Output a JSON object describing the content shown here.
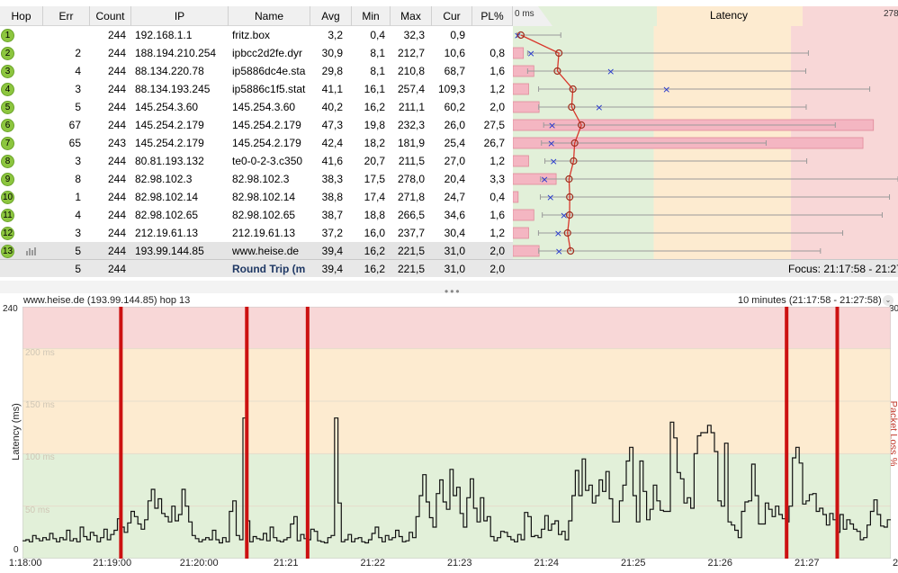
{
  "columns": [
    "Hop",
    "Err",
    "Count",
    "IP",
    "Name",
    "Avg",
    "Min",
    "Max",
    "Cur",
    "PL%"
  ],
  "latency_header": {
    "title": "Latency",
    "min_label": "0 ms",
    "max_label": "278"
  },
  "hops": [
    {
      "hop": "1",
      "err": "",
      "count": "244",
      "ip": "192.168.1.1",
      "name": "fritz.box",
      "avg": "3,2",
      "min": "0,4",
      "max": "32,3",
      "cur": "0,9",
      "pl": ""
    },
    {
      "hop": "2",
      "err": "2",
      "count": "244",
      "ip": "188.194.210.254",
      "name": "ipbcc2d2fe.dyr",
      "avg": "30,9",
      "min": "8,1",
      "max": "212,7",
      "cur": "10,6",
      "pl": "0,8"
    },
    {
      "hop": "3",
      "err": "4",
      "count": "244",
      "ip": "88.134.220.78",
      "name": "ip5886dc4e.sta",
      "avg": "29,8",
      "min": "8,1",
      "max": "210,8",
      "cur": "68,7",
      "pl": "1,6"
    },
    {
      "hop": "4",
      "err": "3",
      "count": "244",
      "ip": "88.134.193.245",
      "name": "ip5886c1f5.stat",
      "avg": "41,1",
      "min": "16,1",
      "max": "257,4",
      "cur": "109,3",
      "pl": "1,2"
    },
    {
      "hop": "5",
      "err": "5",
      "count": "244",
      "ip": "145.254.3.60",
      "name": "145.254.3.60",
      "avg": "40,2",
      "min": "16,2",
      "max": "211,1",
      "cur": "60,2",
      "pl": "2,0"
    },
    {
      "hop": "6",
      "err": "67",
      "count": "244",
      "ip": "145.254.2.179",
      "name": "145.254.2.179",
      "avg": "47,3",
      "min": "19,8",
      "max": "232,3",
      "cur": "26,0",
      "pl": "27,5"
    },
    {
      "hop": "7",
      "err": "65",
      "count": "243",
      "ip": "145.254.2.179",
      "name": "145.254.2.179",
      "avg": "42,4",
      "min": "18,2",
      "max": "181,9",
      "cur": "25,4",
      "pl": "26,7"
    },
    {
      "hop": "8",
      "err": "3",
      "count": "244",
      "ip": "80.81.193.132",
      "name": "te0-0-2-3.c350",
      "avg": "41,6",
      "min": "20,7",
      "max": "211,5",
      "cur": "27,0",
      "pl": "1,2"
    },
    {
      "hop": "9",
      "err": "8",
      "count": "244",
      "ip": "82.98.102.3",
      "name": "82.98.102.3",
      "avg": "38,3",
      "min": "17,5",
      "max": "278,0",
      "cur": "20,4",
      "pl": "3,3"
    },
    {
      "hop": "10",
      "err": "1",
      "count": "244",
      "ip": "82.98.102.14",
      "name": "82.98.102.14",
      "avg": "38,8",
      "min": "17,4",
      "max": "271,8",
      "cur": "24,7",
      "pl": "0,4"
    },
    {
      "hop": "11",
      "err": "4",
      "count": "244",
      "ip": "82.98.102.65",
      "name": "82.98.102.65",
      "avg": "38,7",
      "min": "18,8",
      "max": "266,5",
      "cur": "34,6",
      "pl": "1,6"
    },
    {
      "hop": "12",
      "err": "3",
      "count": "244",
      "ip": "212.19.61.13",
      "name": "212.19.61.13",
      "avg": "37,2",
      "min": "16,0",
      "max": "237,7",
      "cur": "30,4",
      "pl": "1,2"
    },
    {
      "hop": "13",
      "err": "5",
      "count": "244",
      "ip": "193.99.144.85",
      "name": "www.heise.de",
      "avg": "39,4",
      "min": "16,2",
      "max": "221,5",
      "cur": "31,0",
      "pl": "2,0"
    }
  ],
  "round_trip": {
    "err": "5",
    "count": "244",
    "label": "Round Trip (m",
    "avg": "39,4",
    "min": "16,2",
    "max": "221,5",
    "cur": "31,0",
    "pl": "2,0"
  },
  "focus": "Focus: 21:17:58 - 21:27:",
  "graph": {
    "title": "www.heise.de (193.99.144.85) hop 13",
    "range": "10 minutes (21:17:58 - 21:27:58)",
    "y_max_label": "240",
    "y_min_label": "0",
    "y_axis_title": "Latency (ms)",
    "y2_label": "30",
    "y2_title": "Packet Loss %",
    "gridlines": [
      "200 ms",
      "150 ms",
      "100 ms",
      "50 ms"
    ],
    "x_ticks": [
      "1:18:00",
      "21:19:00",
      "21:20:00",
      "21:21",
      "21:22",
      "21:23",
      "21:24",
      "21:25",
      "21:26",
      "21:27",
      "2"
    ]
  },
  "colors": {
    "green_zone": "#e2f0d9",
    "orange_zone": "#fdebd0",
    "red_zone": "#f8d7d7",
    "loss_bar": "#f4b6c2",
    "avg_line": "#d9362b",
    "loss_marker": "#cc1111",
    "cur_marker": "#2233cc",
    "hop_badge": "#8dc63f"
  },
  "chart_data": {
    "type": "line",
    "title": "www.heise.de (193.99.144.85) hop 13",
    "ylabel": "Latency (ms)",
    "ylim": [
      0,
      240
    ],
    "x_range": [
      "21:17:58",
      "21:27:58"
    ],
    "latency_zones_ms": {
      "green": [
        0,
        100
      ],
      "orange": [
        100,
        200
      ],
      "red": [
        200,
        240
      ]
    },
    "packet_loss_times": [
      "21:19:06",
      "21:20:33",
      "21:21:15",
      "21:26:46",
      "21:27:21"
    ],
    "series": [
      {
        "name": "",
        "values": [
          17,
          18,
          16,
          22,
          19,
          17,
          20,
          18,
          24,
          19,
          16,
          20,
          18,
          27,
          17,
          19,
          16,
          30,
          21,
          18,
          25,
          22,
          16,
          20,
          28,
          18,
          23,
          27,
          38,
          30,
          25,
          34,
          45,
          40,
          33,
          28,
          37,
          55,
          66,
          48,
          57,
          43,
          40,
          35,
          50,
          36,
          42,
          66,
          50,
          35,
          22,
          19,
          16,
          18,
          20,
          18,
          27,
          18,
          15,
          20,
          16,
          45,
          55,
          22,
          18,
          134,
          36,
          16,
          21,
          19,
          18,
          24,
          17,
          30,
          20,
          17,
          16,
          18,
          20,
          33,
          40,
          17,
          23,
          19,
          18,
          28,
          26,
          17,
          16,
          15,
          20,
          22,
          134,
          53,
          16,
          18,
          23,
          16,
          19,
          20,
          16,
          15,
          18,
          24,
          30,
          20,
          16,
          22,
          18,
          20,
          27,
          21,
          16,
          17,
          25,
          20,
          40,
          60,
          80,
          54,
          39,
          30,
          62,
          75,
          54,
          47,
          85,
          60,
          68,
          43,
          30,
          58,
          76,
          48,
          35,
          58,
          36,
          40,
          21,
          17,
          20,
          26,
          25,
          21,
          18,
          16,
          23,
          18,
          44,
          40,
          21,
          22,
          20,
          28,
          41,
          27,
          33,
          36,
          23,
          26,
          18,
          36,
          60,
          84,
          60,
          95,
          65,
          70,
          53,
          60,
          75,
          64,
          83,
          57,
          35,
          35,
          55,
          70,
          93,
          106,
          60,
          35,
          93,
          64,
          37,
          47,
          70,
          55,
          46,
          45,
          45,
          130,
          115,
          82,
          76,
          53,
          58,
          48,
          100,
          117,
          120,
          120,
          127,
          120,
          102,
          55,
          50,
          110,
          35,
          32,
          27,
          20,
          45,
          54,
          55,
          90,
          60,
          33,
          33,
          53,
          47,
          40,
          50,
          42,
          38,
          35,
          50,
          96,
          106,
          91,
          52,
          55,
          61,
          62,
          45,
          48,
          42,
          32,
          43,
          37,
          25,
          42,
          28,
          37,
          33,
          28,
          26,
          18,
          20,
          32,
          45,
          56,
          42,
          31,
          30,
          37
        ]
      }
    ]
  }
}
